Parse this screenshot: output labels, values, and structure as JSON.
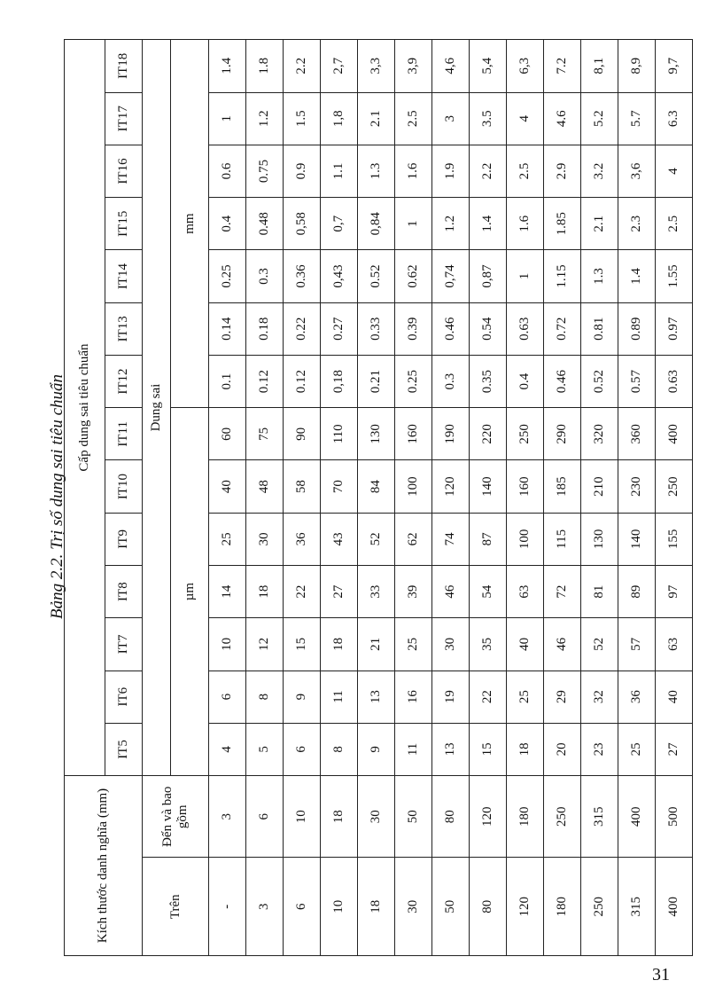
{
  "caption": "Bảng 2.2. Trị số dung sai tiêu chuẩn",
  "header": {
    "size_group": "Kích thước danh nghĩa (mm)",
    "over": "Trên",
    "up_to": "Đến và bao gồm",
    "grade_group": "Cấp dung sai tiêu chuẩn",
    "grades": [
      "IT5",
      "IT6",
      "IT7",
      "IT8",
      "IT9",
      "IT10",
      "IT11",
      "IT12",
      "IT13",
      "IT14",
      "IT15",
      "IT16",
      "IT17",
      "IT18"
    ],
    "tolerance": "Dung sai",
    "unit_um": "µm",
    "unit_mm": "mm"
  },
  "rows": [
    {
      "over": "-",
      "to": "3",
      "values": [
        "4",
        "6",
        "10",
        "14",
        "25",
        "40",
        "60",
        "0.1",
        "0.14",
        "0.25",
        "0.4",
        "0.6",
        "1",
        "1.4"
      ]
    },
    {
      "over": "3",
      "to": "6",
      "values": [
        "5",
        "8",
        "12",
        "18",
        "30",
        "48",
        "75",
        "0.12",
        "0.18",
        "0.3",
        "0.48",
        "0.75",
        "1.2",
        "1.8"
      ]
    },
    {
      "over": "6",
      "to": "10",
      "values": [
        "6",
        "9",
        "15",
        "22",
        "36",
        "58",
        "90",
        "0.12",
        "0.22",
        "0.36",
        "0,58",
        "0.9",
        "1.5",
        "2.2"
      ]
    },
    {
      "over": "10",
      "to": "18",
      "values": [
        "8",
        "11",
        "18",
        "27",
        "43",
        "70",
        "110",
        "0,18",
        "0.27",
        "0,43",
        "0,7",
        "1.1",
        "1,8",
        "2,7"
      ]
    },
    {
      "over": "18",
      "to": "30",
      "values": [
        "9",
        "13",
        "21",
        "33",
        "52",
        "84",
        "130",
        "0.21",
        "0.33",
        "0.52",
        "0,84",
        "1.3",
        "2.1",
        "3,3"
      ]
    },
    {
      "over": "30",
      "to": "50",
      "values": [
        "11",
        "16",
        "25",
        "39",
        "62",
        "100",
        "160",
        "0.25",
        "0.39",
        "0.62",
        "1",
        "1.6",
        "2.5",
        "3,9"
      ]
    },
    {
      "over": "50",
      "to": "80",
      "values": [
        "13",
        "19",
        "30",
        "46",
        "74",
        "120",
        "190",
        "0.3",
        "0.46",
        "0,74",
        "1.2",
        "1.9",
        "3",
        "4,6"
      ]
    },
    {
      "over": "80",
      "to": "120",
      "values": [
        "15",
        "22",
        "35",
        "54",
        "87",
        "140",
        "220",
        "0.35",
        "0.54",
        "0,87",
        "1.4",
        "2.2",
        "3.5",
        "5,4"
      ]
    },
    {
      "over": "120",
      "to": "180",
      "values": [
        "18",
        "25",
        "40",
        "63",
        "100",
        "160",
        "250",
        "0.4",
        "0.63",
        "1",
        "1.6",
        "2.5",
        "4",
        "6,3"
      ]
    },
    {
      "over": "180",
      "to": "250",
      "values": [
        "20",
        "29",
        "46",
        "72",
        "115",
        "185",
        "290",
        "0.46",
        "0.72",
        "1.15",
        "1.85",
        "2.9",
        "4.6",
        "7.2"
      ]
    },
    {
      "over": "250",
      "to": "315",
      "values": [
        "23",
        "32",
        "52",
        "81",
        "130",
        "210",
        "320",
        "0.52",
        "0.81",
        "1.3",
        "2.1",
        "3.2",
        "5.2",
        "8,1"
      ]
    },
    {
      "over": "315",
      "to": "400",
      "values": [
        "25",
        "36",
        "57",
        "89",
        "140",
        "230",
        "360",
        "0.57",
        "0.89",
        "1.4",
        "2.3",
        "3,6",
        "5.7",
        "8,9"
      ]
    },
    {
      "over": "400",
      "to": "500",
      "values": [
        "27",
        "40",
        "63",
        "97",
        "155",
        "250",
        "400",
        "0.63",
        "0.97",
        "1.55",
        "2.5",
        "4",
        "6.3",
        "9,7"
      ]
    }
  ],
  "page_number": "31"
}
